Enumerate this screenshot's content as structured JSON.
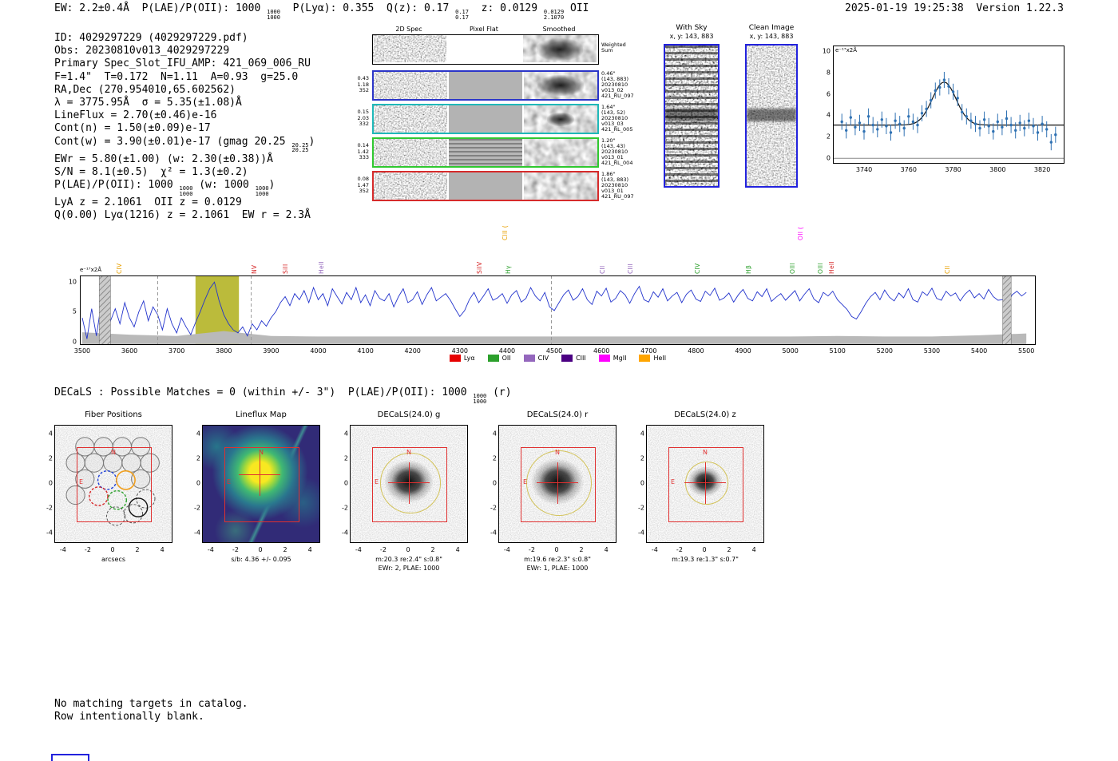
{
  "header": {
    "left_tokens": [
      {
        "t": "EW: 2.2±0.4Å  P(LAE)/P(OII): 1000 "
      },
      {
        "f": [
          "1000",
          "1000"
        ]
      },
      {
        "t": "  P(Lyα): 0.355  Q(z): 0.17 "
      },
      {
        "f": [
          "0.17",
          "0.17"
        ]
      },
      {
        "t": "  z: 0.0129 "
      },
      {
        "f": [
          "0.0129",
          "2.1070"
        ]
      },
      {
        "t": " OII"
      }
    ],
    "right": "2025-01-19 19:25:38  Version 1.22.3"
  },
  "info": {
    "lines": [
      [
        {
          "t": "ID: 4029297229 (4029297229.pdf)"
        }
      ],
      [
        {
          "t": "Obs: 20230810v013_4029297229"
        }
      ],
      [
        {
          "t": "Primary Spec_Slot_IFU_AMP: 421_069_006_RU"
        }
      ],
      [
        {
          "t": "F=1.4\"  T=0.172  N=1.11  A=0.93  g=25.0"
        }
      ],
      [
        {
          "t": "RA,Dec (270.954010,65.602562)"
        }
      ],
      [
        {
          "t": "λ = 3775.95Å  σ = 5.35(±1.08)Å"
        }
      ],
      [
        {
          "t": "LineFlux = 2.70(±0.46)e-16"
        }
      ],
      [
        {
          "t": "Cont(n) = 1.50(±0.09)e-17"
        }
      ],
      [
        {
          "t": "Cont(w) = 3.90(±0.01)e-17 (gmag 20.25 "
        },
        {
          "f": [
            "20.25",
            "20.25"
          ]
        },
        {
          "t": ")"
        }
      ],
      [
        {
          "t": "EWr = 5.80(±1.00) (w: 2.30(±0.38))Å"
        }
      ],
      [
        {
          "t": "S/N = 8.1(±0.5)  χ² = 1.3(±0.2)"
        }
      ],
      [
        {
          "t": "P(LAE)/P(OII): 1000 "
        },
        {
          "f": [
            "1000",
            "1000"
          ]
        },
        {
          "t": " (w: 1000 "
        },
        {
          "f": [
            "1000",
            "1000"
          ]
        },
        {
          "t": ")"
        }
      ],
      [
        {
          "t": "LyA z = 2.1061  OII z = 0.0129"
        }
      ],
      [
        {
          "t": "Q(0.00) Lyα(1216) z = 2.1061  EW r = 2.3Å"
        }
      ]
    ]
  },
  "cutouts2d": {
    "col_headers": [
      "2D Spec",
      "Pixel Flat",
      "Smoothed"
    ],
    "rows": [
      {
        "border": "#000000",
        "left": [],
        "right": [
          "Weighted",
          "Sum"
        ]
      },
      {
        "border": "#2b35c8",
        "left": [
          "0.43",
          "1.18",
          "352"
        ],
        "right": [
          "0.46\"",
          "(143, 883)",
          "20230810",
          "v013_02",
          "421_RU_097"
        ]
      },
      {
        "border": "#1fb8b8",
        "left": [
          "0.15",
          "2.03",
          "332"
        ],
        "right": [
          "1.64\"",
          "(143, 52)",
          "20230810",
          "v013_03",
          "421_RL_005"
        ]
      },
      {
        "border": "#2fc82f",
        "left": [
          "0.14",
          "1.42",
          "333"
        ],
        "right": [
          "1.20\"",
          "(143, 43)",
          "20230810",
          "v013_01",
          "421_RL_004"
        ]
      },
      {
        "border": "#d62b2b",
        "left": [
          "0.08",
          "1.47",
          "352"
        ],
        "right": [
          "1.86\"",
          "(143, 883)",
          "20230810",
          "v013_01",
          "421_RU_097"
        ]
      }
    ]
  },
  "sky_panels": {
    "with_sky": {
      "title": "With Sky",
      "coords": "x, y: 143, 883"
    },
    "clean": {
      "title": "Clean Image",
      "coords": "x, y: 143, 883"
    }
  },
  "decals_line_tokens": [
    {
      "t": "DECaLS : Possible Matches = 0 (within +/- 3\")  P(LAE)/P(OII): 1000 "
    },
    {
      "f": [
        "1000",
        "1000"
      ]
    },
    {
      "t": " (r)"
    }
  ],
  "footer": {
    "lines": [
      "No matching targets in catalog.",
      "Row intentionally blank."
    ]
  },
  "chart_data": [
    {
      "type": "scatter",
      "title": "emission line fit",
      "ylabel": "e⁻¹⁷x2Å",
      "x_start": 3730,
      "x_step": 2,
      "y": [
        3.4,
        2.6,
        3.8,
        2.9,
        3.3,
        2.5,
        3.9,
        3.1,
        2.7,
        3.6,
        3.0,
        2.4,
        3.5,
        3.2,
        2.8,
        3.9,
        3.4,
        3.1,
        4.2,
        4.6,
        5.4,
        6.3,
        6.6,
        7.3,
        6.7,
        6.2,
        5.6,
        4.3,
        3.9,
        3.5,
        3.2,
        2.8,
        3.6,
        3.0,
        2.5,
        3.4,
        2.9,
        3.7,
        3.1,
        2.6,
        3.3,
        2.8,
        3.5,
        3.0,
        2.4,
        3.2,
        2.7,
        1.5,
        2.2
      ],
      "yerr": 0.75,
      "fit": {
        "center": 3775.95,
        "sigma": 5.35,
        "amplitude": 4.0,
        "continuum": 3.1
      },
      "xticks": [
        3740,
        3760,
        3780,
        3800,
        3820
      ],
      "yticks": [
        0,
        2,
        4,
        6,
        8,
        10
      ],
      "xlim": [
        3726,
        3830
      ],
      "ylim": [
        -0.5,
        10.5
      ]
    },
    {
      "type": "line",
      "title": "full spectrum",
      "ylabel": "e⁻¹⁷x2Å",
      "x_start": 3500,
      "x_step": 10,
      "flux": [
        4.0,
        0.5,
        5.5,
        1.0,
        6.2,
        0.3,
        3.5,
        5.5,
        3.0,
        6.5,
        4.0,
        2.5,
        5.0,
        6.8,
        3.5,
        5.8,
        4.5,
        2.0,
        5.5,
        3.0,
        1.5,
        4.0,
        2.5,
        1.2,
        3.2,
        5.0,
        7.0,
        8.8,
        9.9,
        6.8,
        4.5,
        3.0,
        2.0,
        1.5,
        2.5,
        1.0,
        3.0,
        2.0,
        3.5,
        2.6,
        4.0,
        5.0,
        6.5,
        7.5,
        6.0,
        8.0,
        7.0,
        8.5,
        6.5,
        9.0,
        7.0,
        8.0,
        6.0,
        8.8,
        7.5,
        6.3,
        8.2,
        7.0,
        9.0,
        6.5,
        7.8,
        6.0,
        8.5,
        7.2,
        6.8,
        8.0,
        5.8,
        7.5,
        8.8,
        6.5,
        7.0,
        8.3,
        6.2,
        7.8,
        9.0,
        6.8,
        7.4,
        8.0,
        6.9,
        5.5,
        4.2,
        5.2,
        7.0,
        8.2,
        6.5,
        7.6,
        8.8,
        6.9,
        7.3,
        8.0,
        6.4,
        7.8,
        8.5,
        6.6,
        7.2,
        9.0,
        7.6,
        6.8,
        8.2,
        5.8,
        5.2,
        6.5,
        7.8,
        8.6,
        6.9,
        7.5,
        8.8,
        7.0,
        6.2,
        8.4,
        7.6,
        8.9,
        6.6,
        7.2,
        8.5,
        7.8,
        6.4,
        8.0,
        9.2,
        7.0,
        6.6,
        8.3,
        7.4,
        8.8,
        6.8,
        7.6,
        8.2,
        6.5,
        7.9,
        8.6,
        7.1,
        6.7,
        8.4,
        7.7,
        8.9,
        6.9,
        7.3,
        8.1,
        6.6,
        7.8,
        8.7,
        7.2,
        6.8,
        8.3,
        7.5,
        8.8,
        6.7,
        7.4,
        8.0,
        6.9,
        7.7,
        8.5,
        6.8,
        7.9,
        8.8,
        7.1,
        6.5,
        8.2,
        7.6,
        8.4,
        7.0,
        6.2,
        5.4,
        4.2,
        3.8,
        5.0,
        6.4,
        7.5,
        8.2,
        7.0,
        8.6,
        7.4,
        6.8,
        8.1,
        7.3,
        8.8,
        7.0,
        6.6,
        8.3,
        7.7,
        8.9,
        7.2,
        6.9,
        8.4,
        7.6,
        8.1,
        6.8,
        7.9,
        8.6,
        7.3,
        8.0,
        7.1,
        8.7,
        7.5,
        6.9,
        7.0,
        6.2,
        7.8,
        8.4,
        7.6,
        8.2
      ],
      "noise_x_step": 100,
      "noise": [
        1.6,
        1.2,
        1.0,
        1.8,
        1.0,
        0.9,
        0.9,
        0.9,
        0.9,
        0.9,
        0.9,
        0.9,
        0.9,
        0.9,
        0.9,
        0.9,
        1.0,
        0.9,
        0.9,
        1.1,
        1.4
      ],
      "xticks": [
        3500,
        3600,
        3700,
        3800,
        3900,
        4000,
        4100,
        4200,
        4300,
        4400,
        4500,
        4600,
        4700,
        4800,
        4900,
        5000,
        5100,
        5200,
        5300,
        5400,
        5500
      ],
      "yticks": [
        0,
        5,
        10
      ],
      "xlim": [
        3495,
        5520
      ],
      "ylim": [
        -0.5,
        11
      ],
      "highlight_band": [
        3740,
        3832
      ],
      "hatched_bands": [
        [
          3536,
          3560
        ],
        [
          5450,
          5468
        ]
      ],
      "dashed_lines": [
        3660,
        3858,
        4494
      ],
      "emission_labels": [
        {
          "label": "CIV",
          "wave": 3575,
          "color": "#e8a000"
        },
        {
          "label": "NV",
          "wave": 3861,
          "color": "#d62728"
        },
        {
          "label": "SiII",
          "wave": 3927,
          "color": "#d62728"
        },
        {
          "label": "HeII",
          "wave": 4002,
          "color": "#9467bd"
        },
        {
          "label": "SiIV",
          "wave": 4337,
          "color": "#d62728"
        },
        {
          "label": "CIII (",
          "wave": 4392,
          "color": "#e8a000",
          "raise": 42
        },
        {
          "label": "Hγ",
          "wave": 4399,
          "color": "#2ca02c"
        },
        {
          "label": "CII",
          "wave": 4598,
          "color": "#9467bd"
        },
        {
          "label": "CIII",
          "wave": 4657,
          "color": "#9467bd"
        },
        {
          "label": "CIV",
          "wave": 4799,
          "color": "#2ca02c"
        },
        {
          "label": "Hβ",
          "wave": 4908,
          "color": "#2ca02c"
        },
        {
          "label": "OIII",
          "wave": 5000,
          "color": "#2ca02c"
        },
        {
          "label": "OII (",
          "wave": 5018,
          "color": "#ff00ff",
          "raise": 42
        },
        {
          "label": "OIII",
          "wave": 5060,
          "color": "#2ca02c"
        },
        {
          "label": "HeII",
          "wave": 5083,
          "color": "#d62728"
        },
        {
          "label": "CII",
          "wave": 5328,
          "color": "#e8a000"
        }
      ],
      "legend": [
        {
          "label": "Lyα",
          "color": "#e60000"
        },
        {
          "label": "OII",
          "color": "#2ca02c"
        },
        {
          "label": "CIV",
          "color": "#9467bd"
        },
        {
          "label": "CIII",
          "color": "#4b0082"
        },
        {
          "label": "MgII",
          "color": "#ff00ff"
        },
        {
          "label": "HeII",
          "color": "#ffa500"
        }
      ]
    }
  ],
  "bottom_panels": {
    "ticks": [
      -4,
      -2,
      0,
      2,
      4
    ],
    "panels": [
      {
        "type": "fiber",
        "title": "Fiber Positions",
        "captions": [
          "arcsecs"
        ],
        "compass": {
          "n": "N",
          "e": "E"
        },
        "fibers": {
          "r": 0.75,
          "gray": [
            [
              -2.3,
              3.0
            ],
            [
              -0.8,
              3.0
            ],
            [
              0.7,
              3.0
            ],
            [
              2.2,
              3.0
            ],
            [
              -3.05,
              1.7
            ],
            [
              -1.55,
              1.7
            ],
            [
              -0.05,
              1.7
            ],
            [
              1.45,
              1.7
            ],
            [
              2.95,
              1.7
            ],
            [
              -2.3,
              0.4
            ],
            [
              2.2,
              0.4
            ],
            [
              -3.05,
              -0.9
            ]
          ],
          "gray_dashed": [
            [
              0.2,
              -2.6
            ],
            [
              1.6,
              -2.4
            ],
            [
              2.6,
              -1.2
            ]
          ],
          "blue_dashed": [
            [
              -0.5,
              0.3
            ]
          ],
          "orange": [
            [
              1.0,
              0.3
            ]
          ],
          "red_dashed": [
            [
              -1.2,
              -1.0
            ]
          ],
          "green_dashed": [
            [
              0.3,
              -1.3
            ]
          ],
          "black": [
            [
              2.0,
              -1.9
            ]
          ]
        }
      },
      {
        "type": "lineflux",
        "title": "Lineflux Map",
        "captions": [
          "s/b: 4.36 +/- 0.095"
        ],
        "compass": {
          "n": "N",
          "e": "E"
        }
      },
      {
        "type": "decals",
        "title": "DECaLS(24.0) g",
        "captions": [
          "m:20.3 re:2.4\" s:0.8\"",
          "EWr: 2, PLAE: 1000"
        ],
        "compass": {
          "n": "N",
          "e": "E"
        },
        "blob_d": 62,
        "circle_d": 74
      },
      {
        "type": "decals",
        "title": "DECaLS(24.0) r",
        "captions": [
          "m:19.6 re:2.3\" s:0.8\"",
          "EWr: 1, PLAE: 1000"
        ],
        "compass": {
          "n": "N",
          "e": "E"
        },
        "blob_d": 66,
        "circle_d": 80
      },
      {
        "type": "decals",
        "title": "DECaLS(24.0) z",
        "captions": [
          "m:19.3 re:1.3\" s:0.7\""
        ],
        "compass": {
          "n": "N",
          "e": "E"
        },
        "blob_d": 44,
        "circle_d": 52
      }
    ]
  }
}
